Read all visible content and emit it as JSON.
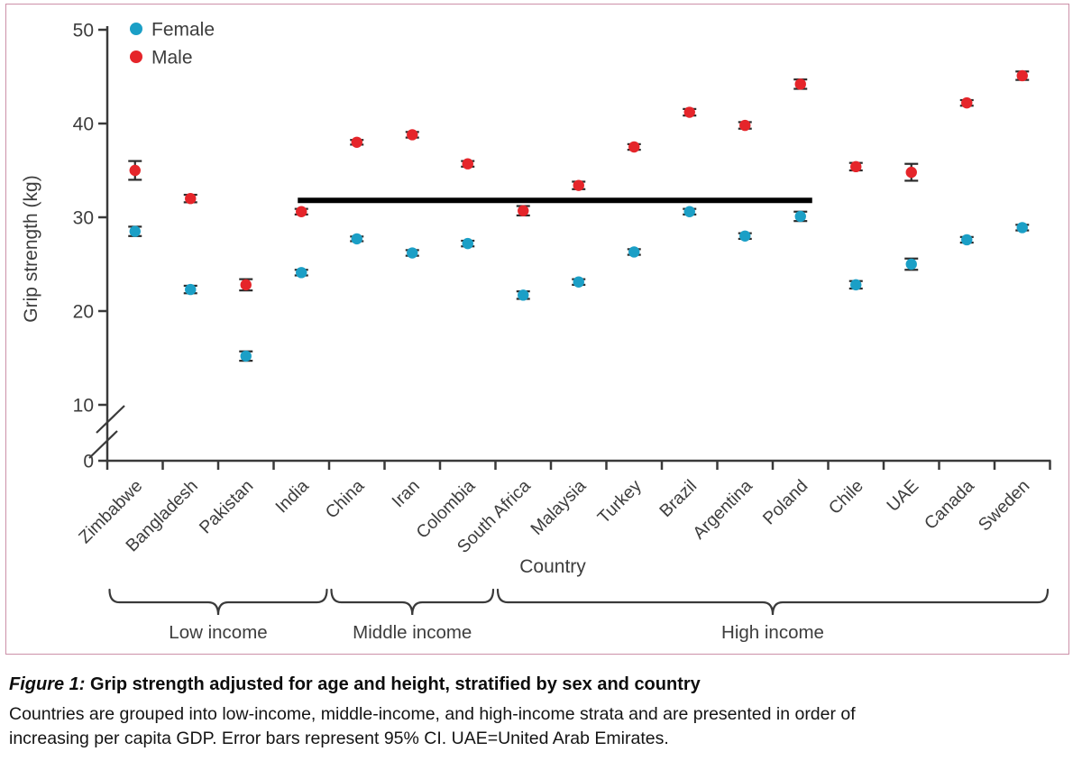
{
  "figure": {
    "caption": {
      "prefix": "Figure 1:",
      "title": " Grip strength adjusted for age and height, stratified by sex and country",
      "body_line1": "Countries are grouped into low-income, middle-income, and high-income strata and are presented in order of",
      "body_line2": "increasing per capita GDP. Error bars represent 95% CI. UAE=United Arab Emirates."
    }
  },
  "chart_data": {
    "type": "scatter",
    "title": "",
    "xlabel": "Country",
    "ylabel": "Grip strength (kg)",
    "ylim": [
      0,
      50
    ],
    "yticks": [
      0,
      10,
      20,
      30,
      40,
      50
    ],
    "y_axis_break_between": [
      0,
      10
    ],
    "grid": false,
    "legend": {
      "position": "top-left",
      "entries": [
        {
          "label": "Female",
          "color": "#1b9fc6"
        },
        {
          "label": "Male",
          "color": "#e5252a"
        }
      ]
    },
    "categories": [
      "Zimbabwe",
      "Bangladesh",
      "Pakistan",
      "India",
      "China",
      "Iran",
      "Colombia",
      "South Africa",
      "Malaysia",
      "Turkey",
      "Brazil",
      "Argentina",
      "Poland",
      "Chile",
      "UAE",
      "Canada",
      "Sweden"
    ],
    "series": [
      {
        "name": "Female",
        "color": "#1b9fc6",
        "values": [
          28.5,
          22.3,
          15.2,
          24.1,
          27.7,
          26.2,
          27.2,
          21.7,
          23.1,
          26.3,
          30.6,
          28.0,
          30.1,
          22.8,
          25.0,
          27.6,
          28.9
        ],
        "ci95_halfwidth": [
          0.5,
          0.4,
          0.5,
          0.3,
          0.25,
          0.3,
          0.3,
          0.4,
          0.3,
          0.3,
          0.3,
          0.3,
          0.5,
          0.4,
          0.6,
          0.3,
          0.3
        ]
      },
      {
        "name": "Male",
        "color": "#e5252a",
        "values": [
          35.0,
          32.0,
          22.8,
          30.6,
          38.0,
          38.8,
          35.7,
          30.7,
          33.4,
          37.5,
          41.2,
          39.8,
          44.2,
          35.4,
          34.8,
          42.2,
          45.1
        ],
        "ci95_halfwidth": [
          1.0,
          0.4,
          0.6,
          0.3,
          0.25,
          0.3,
          0.3,
          0.5,
          0.4,
          0.3,
          0.35,
          0.35,
          0.5,
          0.4,
          0.9,
          0.3,
          0.45
        ]
      }
    ],
    "reference_line": {
      "y": 31.8,
      "from_category": "India",
      "to_category": "Poland",
      "color": "#000000"
    },
    "income_groups": [
      {
        "label": "Low income",
        "from_category": "Zimbabwe",
        "to_category": "India"
      },
      {
        "label": "Middle income",
        "from_category": "China",
        "to_category": "Colombia"
      },
      {
        "label": "High income",
        "from_category": "South Africa",
        "to_category": "Sweden"
      }
    ],
    "colors": {
      "axis": "#3a3a3a",
      "tick_text": "#3d3d3d",
      "error_bar": "#2b2b2b",
      "brace": "#3a3a3a",
      "panel_border": "#cc90a8"
    }
  }
}
